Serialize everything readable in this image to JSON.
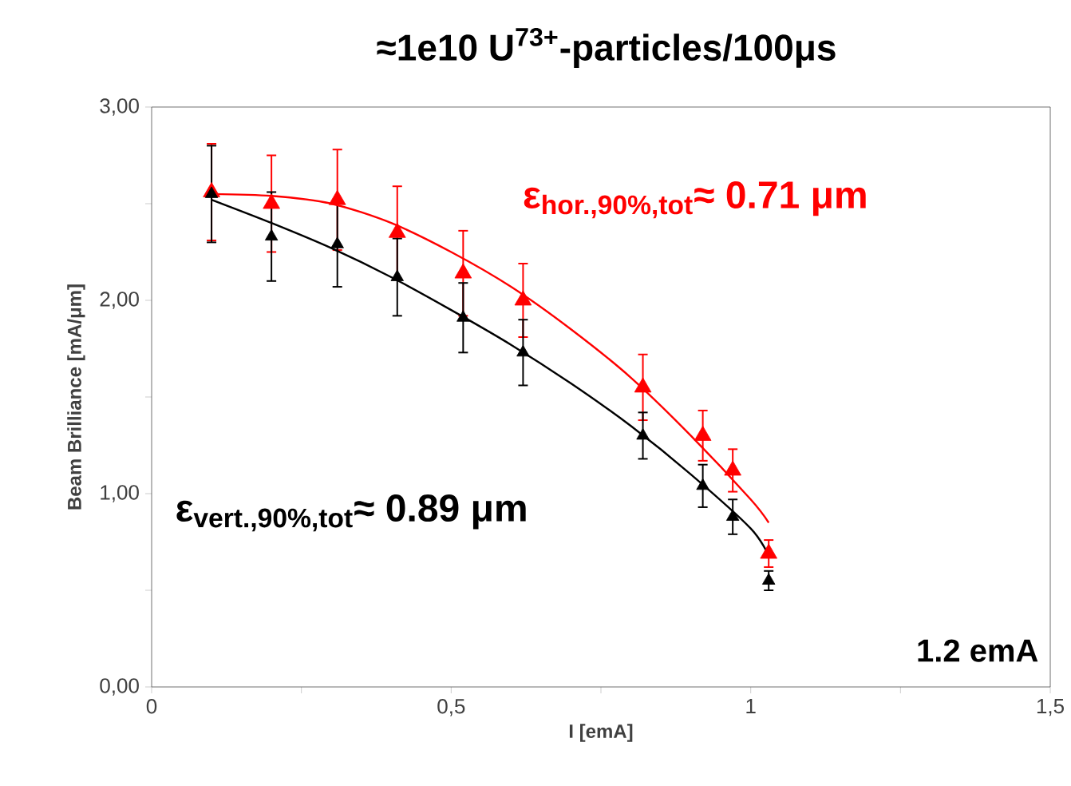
{
  "chart_data": {
    "type": "scatter",
    "title": "≈1e10 U$^{73+}$-particles/100μs",
    "xlabel": "I [emA]",
    "ylabel": "Beam Brilliance  [mA/μm]",
    "annotations": [
      "\\text{ε}_{\\text{hor.,90\\%,tot}}\\text{≈ 0.71 μm}",
      "\\text{ε}_{\\text{vert.,90\\%,tot}}\\text{≈ 0.89 μm}",
      "1.2 emA"
    ],
    "xlim": [
      0,
      1.5
    ],
    "ylim": [
      0,
      3
    ],
    "xticks": [
      0,
      {
        "value": 0.25,
        "label": null
      },
      {
        "value": 0.5,
        "label": "0,5"
      },
      {
        "value": 0.75,
        "label": null
      },
      1,
      {
        "value": 1.25,
        "label": null
      },
      {
        "value": 1.5,
        "label": "1,5"
      }
    ],
    "yticks": [
      {
        "value": 0,
        "label": "0,00"
      },
      {
        "value": 0.5,
        "label": null
      },
      {
        "value": 1,
        "label": "1,00"
      },
      {
        "value": 1.5,
        "label": null
      },
      {
        "value": 2,
        "label": "2,00"
      },
      {
        "value": 2.5,
        "label": null
      },
      {
        "value": 3,
        "label": "3,00"
      }
    ],
    "marker": "triangle",
    "grid": false,
    "series": [
      {
        "color": "#ff0000",
        "x": [
          0.1,
          0.2,
          0.31,
          0.41,
          0.52,
          0.62,
          0.82,
          0.92,
          0.97,
          1.03
        ],
        "values": [
          2.56,
          2.5,
          2.52,
          2.35,
          2.14,
          2.0,
          1.55,
          1.3,
          1.12,
          0.69
        ],
        "errors": [
          0.25,
          0.25,
          0.26,
          0.24,
          0.22,
          0.19,
          0.17,
          0.13,
          0.11,
          0.07
        ]
      },
      {
        "color": "#000000",
        "x": [
          0.1,
          0.2,
          0.31,
          0.41,
          0.52,
          0.62,
          0.82,
          0.92,
          0.97,
          1.03
        ],
        "values": [
          2.55,
          2.33,
          2.29,
          2.12,
          1.91,
          1.73,
          1.3,
          1.04,
          0.88,
          0.55
        ],
        "errors": [
          0.25,
          0.23,
          0.22,
          0.2,
          0.18,
          0.17,
          0.12,
          0.11,
          0.09,
          0.05
        ]
      },
      {
        "type": "line",
        "marker": "none",
        "color": "#ff0000",
        "x": [
          0.1,
          0.2,
          0.3,
          0.4,
          0.5,
          0.6,
          0.7,
          0.8,
          0.9,
          1.0,
          1.03
        ],
        "values": [
          2.55,
          2.54,
          2.5,
          2.4,
          2.25,
          2.07,
          1.85,
          1.6,
          1.3,
          0.97,
          0.85
        ]
      },
      {
        "type": "line",
        "marker": "none",
        "color": "#000000",
        "x": [
          0.1,
          0.2,
          0.3,
          0.4,
          0.5,
          0.6,
          0.7,
          0.8,
          0.9,
          1.0,
          1.03
        ],
        "values": [
          2.52,
          2.4,
          2.27,
          2.12,
          1.95,
          1.77,
          1.57,
          1.35,
          1.1,
          0.82,
          0.68
        ]
      }
    ]
  }
}
